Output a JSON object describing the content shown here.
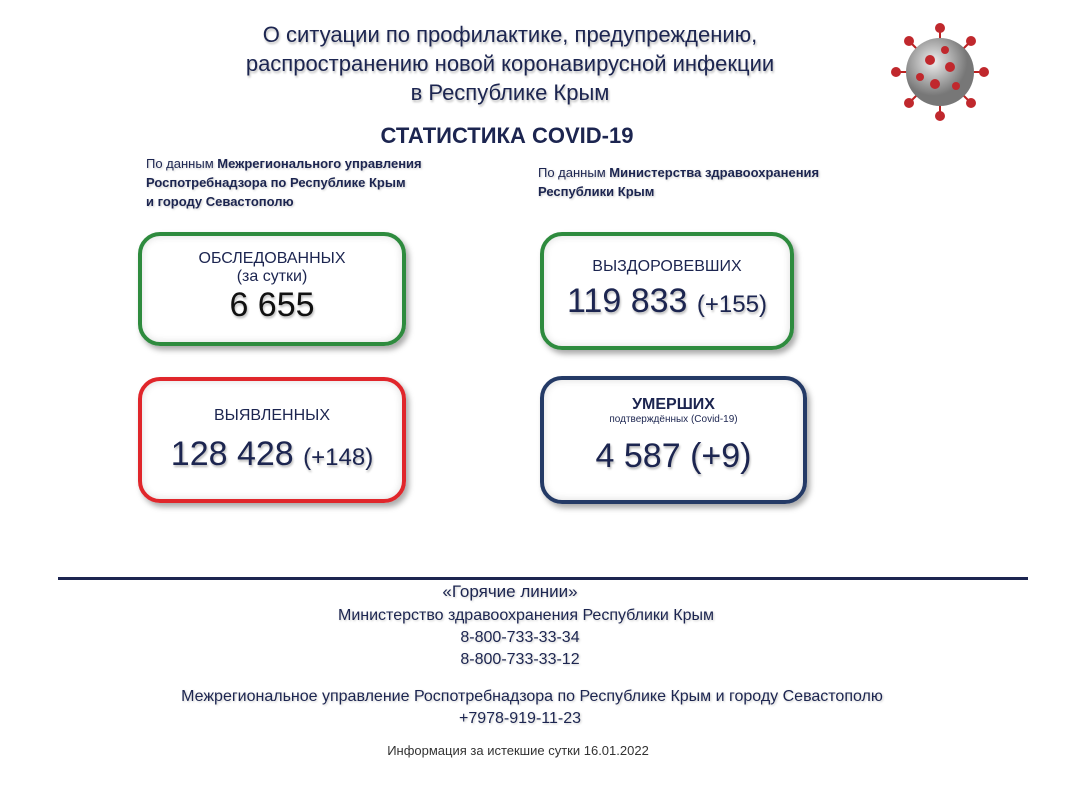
{
  "header": {
    "title_lines": [
      "О ситуации по профилактике, предупреждению,",
      "распространению новой коронавирусной инфекции",
      "в Республике Крым"
    ],
    "subtitle": "СТАТИСТИКА COVID-19",
    "virus_icon": "coronavirus-icon"
  },
  "sources": {
    "left": {
      "prefix": "По данным",
      "lines": [
        "Межрегионального управления",
        "Роспотребнадзора по Республике Крым",
        "и городу Севастополю"
      ]
    },
    "right": {
      "prefix": "По данным",
      "lines": [
        "Министерства здравоохранения",
        "Республики Крым"
      ]
    }
  },
  "cards": {
    "tested": {
      "label": "ОБСЛЕДОВАННЫХ",
      "sublabel": "(за сутки)",
      "value": "6 655",
      "color": "#2e8b3e"
    },
    "recovered": {
      "label": "ВЫЗДОРОВЕВШИХ",
      "value": "119 833",
      "delta": "(+155)",
      "color": "#2e8b3e"
    },
    "detected": {
      "label": "ВЫЯВЛЕННЫХ",
      "value": "128 428",
      "delta": "(+148)",
      "color": "#e0262b"
    },
    "deaths": {
      "label": "УМЕРШИХ",
      "sublabel": "подтверждённых (Covid-19)",
      "value": "4 587",
      "delta": "(+9)",
      "color": "#243a66"
    }
  },
  "hotlines": {
    "title": "«Горячие линии»",
    "ministry": "Министерство здравоохранения Республики Крым",
    "phone1": "8-800-733-33-34",
    "phone2": "8-800-733-33-12",
    "rospotreb": "Межрегиональное управление Роспотребнадзора по Республике Крым и городу Севастополю",
    "phone3": "+7978-919-11-23"
  },
  "footer": {
    "info": "Информация за истекшие сутки 16.01.2022"
  }
}
